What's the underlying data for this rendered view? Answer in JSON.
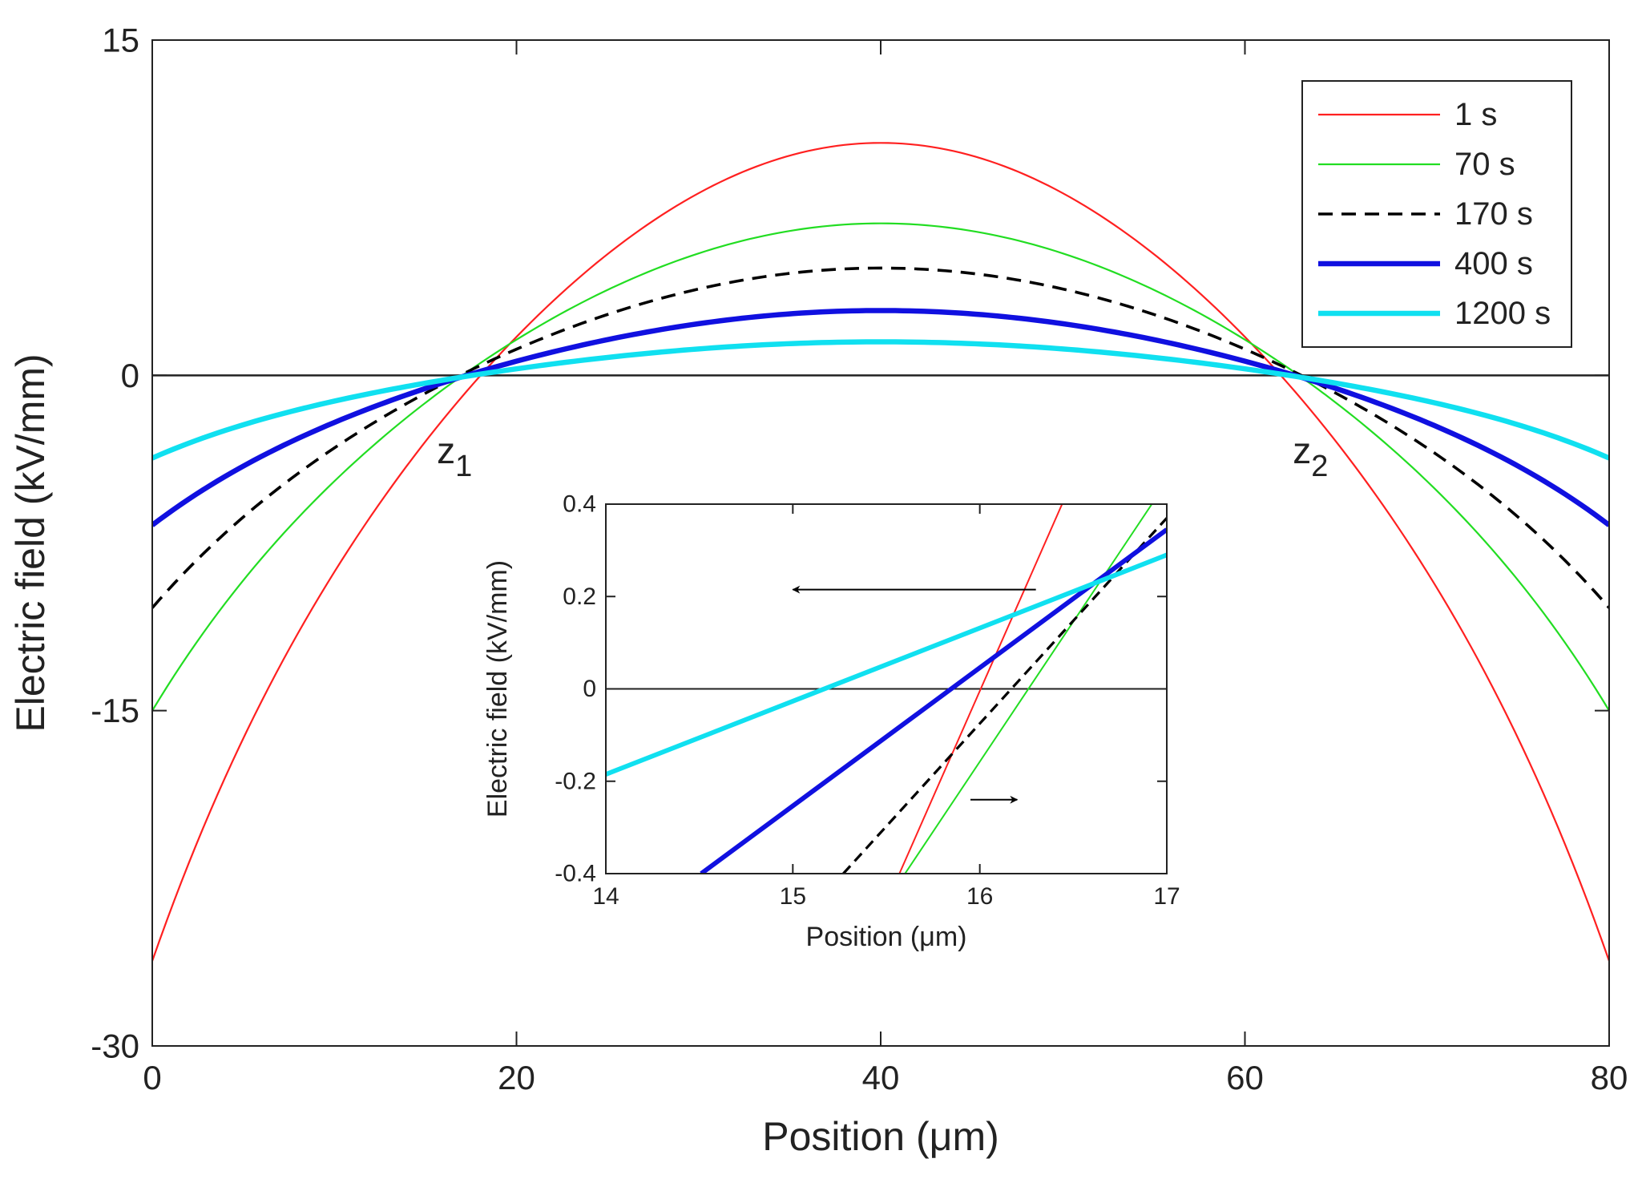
{
  "chart_data": [
    {
      "id": "main",
      "type": "line",
      "title": "",
      "xlabel": "Position (μm)",
      "ylabel": "Electric field (kV/mm)",
      "xlim": [
        0,
        80
      ],
      "ylim": [
        -30,
        15
      ],
      "xticks": [
        0,
        20,
        40,
        60,
        80
      ],
      "yticks": [
        -30,
        -15,
        0,
        15
      ],
      "xtick_labels": [
        "0",
        "20",
        "40",
        "60",
        "80"
      ],
      "ytick_labels": [
        "-30",
        "-15",
        "0",
        "15"
      ],
      "zero_line": true,
      "grid": false,
      "legend_position": "top-right",
      "annotations": [
        {
          "base": "z",
          "sub": "1",
          "x": 16.6,
          "y": -2.5
        },
        {
          "base": "z",
          "sub": "2",
          "x": 63.6,
          "y": -2.5
        }
      ],
      "series": [
        {
          "name": "1 s",
          "color": "#ff2020",
          "style": "solid",
          "weight": "thin",
          "x": [
            0,
            10,
            20,
            30,
            40,
            50,
            60,
            70,
            80
          ],
          "y": [
            -26.2,
            -7.0,
            4.3,
            9.2,
            10.4,
            9.2,
            4.3,
            -7.0,
            -26.2
          ]
        },
        {
          "name": "70 s",
          "color": "#22dd22",
          "style": "solid",
          "weight": "thin",
          "x": [
            0,
            10,
            20,
            30,
            40,
            50,
            60,
            70,
            80
          ],
          "y": [
            -15.0,
            -3.8,
            2.9,
            5.8,
            6.8,
            5.8,
            2.9,
            -3.8,
            -15.0
          ]
        },
        {
          "name": "170 s",
          "color": "#000000",
          "style": "dashed",
          "weight": "medium",
          "x": [
            0,
            10,
            20,
            30,
            40,
            50,
            60,
            70,
            80
          ],
          "y": [
            -10.4,
            -2.6,
            2.1,
            4.2,
            4.8,
            4.2,
            2.1,
            -2.6,
            -10.4
          ]
        },
        {
          "name": "400 s",
          "color": "#1010e0",
          "style": "solid",
          "weight": "thick",
          "x": [
            0,
            10,
            20,
            30,
            40,
            50,
            60,
            70,
            80
          ],
          "y": [
            -6.7,
            -1.6,
            1.2,
            2.6,
            2.9,
            2.6,
            1.2,
            -1.6,
            -6.7
          ]
        },
        {
          "name": "1200 s",
          "color": "#10e0f0",
          "style": "solid",
          "weight": "thick",
          "x": [
            0,
            10,
            20,
            30,
            40,
            50,
            60,
            70,
            80
          ],
          "y": [
            -3.7,
            -0.8,
            0.6,
            1.3,
            1.5,
            1.3,
            0.6,
            -0.8,
            -3.7
          ]
        }
      ]
    },
    {
      "id": "inset",
      "type": "line",
      "title": "",
      "xlabel": "Position (μm)",
      "ylabel": "Electric field (kV/mm)",
      "xlim": [
        14,
        17
      ],
      "ylim": [
        -0.4,
        0.4
      ],
      "xticks": [
        14,
        15,
        16,
        17
      ],
      "yticks": [
        -0.4,
        -0.2,
        0,
        0.2,
        0.4
      ],
      "xtick_labels": [
        "14",
        "15",
        "16",
        "17"
      ],
      "ytick_labels": [
        "-0.4",
        "-0.2",
        "0",
        "0.2",
        "0.4"
      ],
      "zero_line": true,
      "grid": false,
      "arrows": [
        {
          "direction": "left",
          "from": [
            16.3,
            0.215
          ],
          "to": [
            15.0,
            0.215
          ],
          "color": "#000000"
        },
        {
          "direction": "right",
          "from": [
            15.95,
            -0.24
          ],
          "to": [
            16.2,
            -0.24
          ],
          "color": "#000000"
        }
      ],
      "series": [
        {
          "name": "1 s",
          "color": "#ff2020",
          "style": "solid",
          "weight": "thin",
          "x": [
            15.57,
            16.44
          ],
          "y": [
            -0.4,
            0.4
          ]
        },
        {
          "name": "70 s",
          "color": "#22dd22",
          "style": "solid",
          "weight": "thin",
          "x": [
            15.6,
            16.92
          ],
          "y": [
            -0.4,
            0.4
          ]
        },
        {
          "name": "170 s",
          "color": "#000000",
          "style": "dashed",
          "weight": "medium",
          "x": [
            15.27,
            17.0
          ],
          "y": [
            -0.4,
            0.37
          ]
        },
        {
          "name": "400 s",
          "color": "#1010e0",
          "style": "solid",
          "weight": "thick",
          "x": [
            14.51,
            17.0
          ],
          "y": [
            -0.4,
            0.345
          ]
        },
        {
          "name": "1200 s",
          "color": "#10e0f0",
          "style": "solid",
          "weight": "thick",
          "x": [
            14.0,
            17.0
          ],
          "y": [
            -0.185,
            0.29
          ]
        }
      ]
    }
  ]
}
